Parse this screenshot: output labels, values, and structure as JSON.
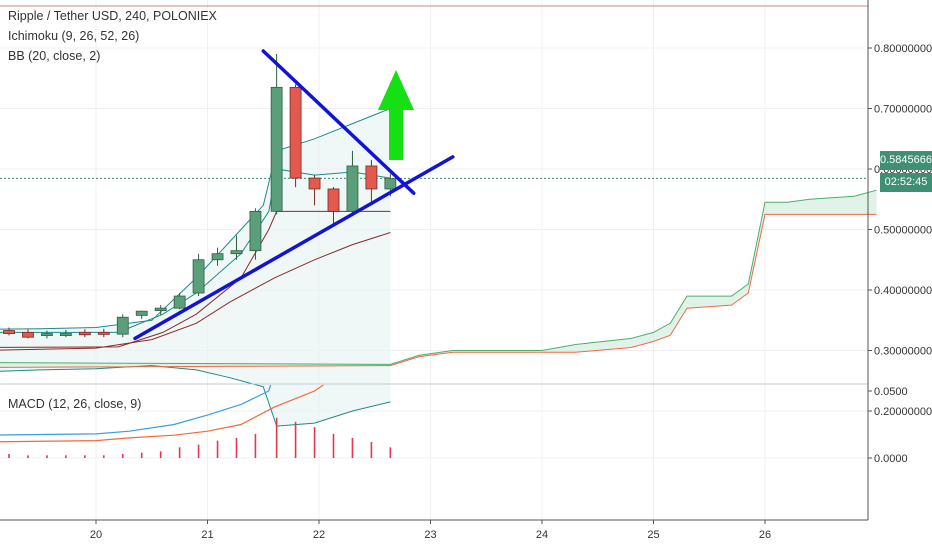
{
  "legend": {
    "title": "Ripple / Tether USD, 240, POLONIEX",
    "ichimoku": "Ichimoku (9, 26, 52, 26)",
    "bb": "BB (20, close, 2)",
    "macd": "MACD (12, 26, close, 9)"
  },
  "price_tag": {
    "value": "0.58456660",
    "color": "#3f8f75"
  },
  "countdown_tag": {
    "value": "02:52:45",
    "color": "#3f8f75"
  },
  "colors": {
    "up": "#5b9e7a",
    "down": "#e25a4f",
    "trendline": "#1313d6",
    "arrow": "#14e014",
    "bb": "#1f8a8a",
    "kijun": "#8b2a2a",
    "span_a": "#4caf6a",
    "span_b": "#ef6a4a",
    "macd": "#3b9fd8",
    "signal": "#f26a3a",
    "hist": "#e0384d"
  },
  "chart_data": [
    {
      "type": "candlestick",
      "title": "Ripple / Tether USD, 240, POLONIEX",
      "x_ticks": [
        "20",
        "21",
        "22",
        "23",
        "24",
        "25",
        "26"
      ],
      "y_ticks": [
        "0.80000000",
        "0.70000000",
        "0.60000000",
        "0.50000000",
        "0.40000000",
        "0.30000000",
        "0.20000000"
      ],
      "ylim": [
        0.18,
        0.88
      ],
      "candles": [
        {
          "x": 19.05,
          "o": 0.323,
          "h": 0.336,
          "l": 0.318,
          "c": 0.333
        },
        {
          "x": 19.22,
          "o": 0.333,
          "h": 0.338,
          "l": 0.325,
          "c": 0.328
        },
        {
          "x": 19.39,
          "o": 0.33,
          "h": 0.335,
          "l": 0.32,
          "c": 0.322
        },
        {
          "x": 19.56,
          "o": 0.325,
          "h": 0.333,
          "l": 0.32,
          "c": 0.328
        },
        {
          "x": 19.73,
          "o": 0.327,
          "h": 0.334,
          "l": 0.322,
          "c": 0.328
        },
        {
          "x": 19.9,
          "o": 0.33,
          "h": 0.335,
          "l": 0.322,
          "c": 0.326
        },
        {
          "x": 20.07,
          "o": 0.33,
          "h": 0.336,
          "l": 0.322,
          "c": 0.327
        },
        {
          "x": 20.24,
          "o": 0.327,
          "h": 0.36,
          "l": 0.322,
          "c": 0.355
        },
        {
          "x": 20.41,
          "o": 0.358,
          "h": 0.366,
          "l": 0.352,
          "c": 0.365
        },
        {
          "x": 20.58,
          "o": 0.366,
          "h": 0.375,
          "l": 0.358,
          "c": 0.37
        },
        {
          "x": 20.75,
          "o": 0.37,
          "h": 0.395,
          "l": 0.368,
          "c": 0.39
        },
        {
          "x": 20.92,
          "o": 0.395,
          "h": 0.46,
          "l": 0.39,
          "c": 0.45
        },
        {
          "x": 21.09,
          "o": 0.45,
          "h": 0.47,
          "l": 0.44,
          "c": 0.46
        },
        {
          "x": 21.26,
          "o": 0.46,
          "h": 0.49,
          "l": 0.45,
          "c": 0.465
        },
        {
          "x": 21.43,
          "o": 0.465,
          "h": 0.535,
          "l": 0.45,
          "c": 0.53
        },
        {
          "x": 21.62,
          "o": 0.53,
          "h": 0.79,
          "l": 0.525,
          "c": 0.735
        },
        {
          "x": 21.79,
          "o": 0.735,
          "h": 0.74,
          "l": 0.57,
          "c": 0.585
        },
        {
          "x": 21.96,
          "o": 0.585,
          "h": 0.59,
          "l": 0.54,
          "c": 0.567
        },
        {
          "x": 22.13,
          "o": 0.567,
          "h": 0.57,
          "l": 0.505,
          "c": 0.53
        },
        {
          "x": 22.3,
          "o": 0.53,
          "h": 0.63,
          "l": 0.525,
          "c": 0.605
        },
        {
          "x": 22.47,
          "o": 0.605,
          "h": 0.615,
          "l": 0.54,
          "c": 0.567
        },
        {
          "x": 22.64,
          "o": 0.567,
          "h": 0.592,
          "l": 0.555,
          "c": 0.584
        }
      ],
      "bb_upper": [
        [
          19.0,
          0.335
        ],
        [
          19.5,
          0.336
        ],
        [
          20.0,
          0.338
        ],
        [
          20.5,
          0.35
        ],
        [
          20.9,
          0.42
        ],
        [
          21.2,
          0.48
        ],
        [
          21.5,
          0.54
        ],
        [
          21.62,
          0.63
        ],
        [
          21.96,
          0.65
        ],
        [
          22.3,
          0.675
        ],
        [
          22.64,
          0.7
        ]
      ],
      "bb_basis": [
        [
          19.0,
          0.3
        ],
        [
          19.5,
          0.302
        ],
        [
          20.0,
          0.304
        ],
        [
          20.5,
          0.318
        ],
        [
          20.9,
          0.345
        ],
        [
          21.2,
          0.38
        ],
        [
          21.6,
          0.42
        ],
        [
          21.96,
          0.45
        ],
        [
          22.3,
          0.475
        ],
        [
          22.64,
          0.495
        ]
      ],
      "bb_lower": [
        [
          19.0,
          0.265
        ],
        [
          19.5,
          0.268
        ],
        [
          20.0,
          0.27
        ],
        [
          20.5,
          0.275
        ],
        [
          20.9,
          0.268
        ],
        [
          21.2,
          0.255
        ],
        [
          21.5,
          0.24
        ],
        [
          21.62,
          0.175
        ],
        [
          21.96,
          0.18
        ],
        [
          22.3,
          0.2
        ],
        [
          22.64,
          0.215
        ]
      ],
      "conversion": [
        [
          19.0,
          0.33
        ],
        [
          20.2,
          0.33
        ],
        [
          20.6,
          0.36
        ],
        [
          20.9,
          0.395
        ],
        [
          21.3,
          0.46
        ],
        [
          21.55,
          0.53
        ],
        [
          21.62,
          0.6
        ],
        [
          21.96,
          0.59
        ],
        [
          22.3,
          0.595
        ],
        [
          22.64,
          0.585
        ]
      ],
      "kijun": [
        [
          19.0,
          0.305
        ],
        [
          20.2,
          0.306
        ],
        [
          20.6,
          0.33
        ],
        [
          20.9,
          0.36
        ],
        [
          21.3,
          0.42
        ],
        [
          21.55,
          0.5
        ],
        [
          21.62,
          0.53
        ],
        [
          22.64,
          0.53
        ]
      ],
      "cloud_projected_a": [
        [
          19.0,
          0.28
        ],
        [
          22.64,
          0.277
        ],
        [
          22.9,
          0.292
        ],
        [
          23.2,
          0.3
        ],
        [
          24.0,
          0.3
        ],
        [
          24.3,
          0.31
        ],
        [
          24.8,
          0.32
        ],
        [
          25.0,
          0.33
        ],
        [
          25.15,
          0.345
        ],
        [
          25.3,
          0.39
        ],
        [
          25.7,
          0.39
        ],
        [
          25.85,
          0.41
        ],
        [
          26.0,
          0.545
        ],
        [
          26.2,
          0.545
        ],
        [
          26.4,
          0.55
        ],
        [
          26.8,
          0.555
        ],
        [
          27.0,
          0.565
        ]
      ],
      "cloud_projected_b": [
        [
          19.0,
          0.272
        ],
        [
          22.64,
          0.275
        ],
        [
          22.9,
          0.29
        ],
        [
          23.2,
          0.297
        ],
        [
          24.0,
          0.297
        ],
        [
          24.3,
          0.297
        ],
        [
          24.8,
          0.305
        ],
        [
          25.0,
          0.315
        ],
        [
          25.15,
          0.325
        ],
        [
          25.3,
          0.37
        ],
        [
          25.7,
          0.375
        ],
        [
          25.85,
          0.395
        ],
        [
          26.0,
          0.525
        ],
        [
          27.0,
          0.525
        ]
      ],
      "current_price": 0.5845666,
      "trendlines": [
        {
          "from": [
            20.35,
            0.32
          ],
          "to": [
            23.2,
            0.62
          ]
        },
        {
          "from": [
            21.5,
            0.795
          ],
          "to": [
            22.85,
            0.56
          ]
        }
      ],
      "annotation": "up-arrow"
    },
    {
      "type": "macd",
      "title": "MACD (12, 26, close, 9)",
      "y_ticks": [
        "0.0500",
        "0.0000"
      ],
      "ylim": [
        -0.022,
        0.055
      ],
      "macd": [
        [
          19.0,
          0.017
        ],
        [
          20.0,
          0.018
        ],
        [
          20.3,
          0.02
        ],
        [
          20.7,
          0.025
        ],
        [
          21.0,
          0.032
        ],
        [
          21.3,
          0.04
        ],
        [
          21.55,
          0.05
        ],
        [
          21.62,
          0.07
        ]
      ],
      "signal": [
        [
          19.0,
          0.012
        ],
        [
          20.0,
          0.013
        ],
        [
          20.3,
          0.015
        ],
        [
          20.7,
          0.017
        ],
        [
          21.0,
          0.02
        ],
        [
          21.3,
          0.025
        ],
        [
          21.6,
          0.038
        ],
        [
          21.96,
          0.05
        ],
        [
          22.1,
          0.058
        ]
      ],
      "histogram": [
        [
          19.05,
          0.003
        ],
        [
          19.22,
          0.003
        ],
        [
          19.39,
          0.002
        ],
        [
          19.56,
          0.002
        ],
        [
          19.73,
          0.002
        ],
        [
          19.9,
          0.002
        ],
        [
          20.07,
          0.002
        ],
        [
          20.24,
          0.003
        ],
        [
          20.41,
          0.004
        ],
        [
          20.58,
          0.005
        ],
        [
          20.75,
          0.008
        ],
        [
          20.92,
          0.01
        ],
        [
          21.09,
          0.013
        ],
        [
          21.26,
          0.015
        ],
        [
          21.43,
          0.018
        ],
        [
          21.62,
          0.03
        ],
        [
          21.79,
          0.027
        ],
        [
          21.96,
          0.023
        ],
        [
          22.13,
          0.018
        ],
        [
          22.3,
          0.015
        ],
        [
          22.47,
          0.012
        ],
        [
          22.64,
          0.008
        ]
      ]
    }
  ]
}
